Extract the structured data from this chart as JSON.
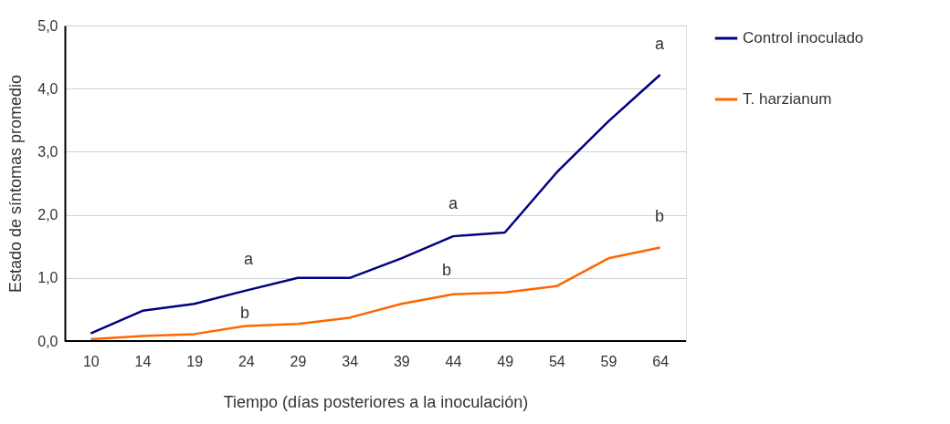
{
  "chart_data": {
    "type": "line",
    "xlabel": "Tiempo (días posteriores a la inoculación)",
    "ylabel": "Estado de síntomas promedio",
    "categories": [
      "10",
      "14",
      "19",
      "24",
      "29",
      "34",
      "39",
      "44",
      "49",
      "54",
      "59",
      "64"
    ],
    "series": [
      {
        "name": "Control inoculado",
        "color": "#000080",
        "values": [
          0.12,
          0.48,
          0.59,
          0.8,
          1.0,
          1.0,
          1.31,
          1.66,
          1.72,
          2.67,
          3.48,
          4.22
        ]
      },
      {
        "name": "T. harzianum",
        "color": "#ff6600",
        "values": [
          0.03,
          0.08,
          0.11,
          0.24,
          0.27,
          0.37,
          0.59,
          0.74,
          0.77,
          0.87,
          1.31,
          1.48
        ]
      }
    ],
    "ylim": [
      0,
      5
    ],
    "yticks": [
      {
        "value": 0,
        "label": "0,0"
      },
      {
        "value": 1,
        "label": "1,0"
      },
      {
        "value": 2,
        "label": "2,0"
      },
      {
        "value": 3,
        "label": "3,0"
      },
      {
        "value": 4,
        "label": "4,0"
      },
      {
        "value": 5,
        "label": "5,0"
      }
    ],
    "annotations": [
      "a",
      "b",
      "a",
      "b",
      "a",
      "b"
    ],
    "grid": "y",
    "legend": "right",
    "marker": "none",
    "line_style": "solid"
  }
}
